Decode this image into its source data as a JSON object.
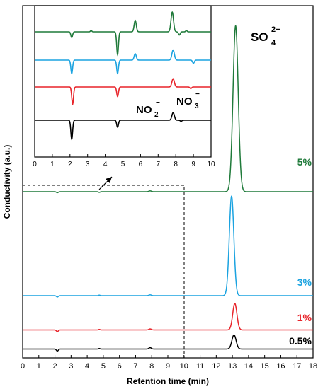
{
  "chart_data": [
    {
      "type": "line",
      "title": "",
      "xlabel": "Retention time (min)",
      "ylabel": "Conductivity (a.u.)",
      "xlim": [
        0,
        18
      ],
      "x_ticks": [
        "0",
        "1",
        "2",
        "3",
        "4",
        "5",
        "6",
        "7",
        "8",
        "9",
        "10",
        "11",
        "12",
        "13",
        "14",
        "15",
        "16",
        "17",
        "18"
      ],
      "y_ticks": "none",
      "grid": false,
      "stacked_offset_traces": true,
      "series": [
        {
          "name": "0.5%",
          "color": "#000000",
          "baseline": 0.0,
          "peaks": [
            {
              "x": 2.15,
              "h": -0.12,
              "w": 0.06
            },
            {
              "x": 4.75,
              "h": 0.03,
              "w": 0.05
            },
            {
              "x": 7.9,
              "h": 0.08,
              "w": 0.08
            },
            {
              "x": 13.1,
              "h": 0.85,
              "w": 0.13
            }
          ]
        },
        {
          "name": "1%",
          "color": "#e8242a",
          "baseline": 1.1,
          "peaks": [
            {
              "x": 2.15,
              "h": -0.1,
              "w": 0.06
            },
            {
              "x": 4.75,
              "h": 0.03,
              "w": 0.05
            },
            {
              "x": 7.9,
              "h": 0.06,
              "w": 0.08
            },
            {
              "x": 13.15,
              "h": 1.6,
              "w": 0.13
            }
          ]
        },
        {
          "name": "3%",
          "color": "#1ba3e0",
          "baseline": 2.1,
          "peaks": [
            {
              "x": 2.15,
              "h": -0.08,
              "w": 0.06
            },
            {
              "x": 4.75,
              "h": 0.03,
              "w": 0.05
            },
            {
              "x": 7.9,
              "h": 0.05,
              "w": 0.08
            },
            {
              "x": 12.95,
              "h": 6.0,
              "w": 0.14
            }
          ]
        },
        {
          "name": "5%",
          "color": "#1f7a3a",
          "baseline": 8.0,
          "peaks": [
            {
              "x": 2.15,
              "h": -0.06,
              "w": 0.06
            },
            {
              "x": 4.75,
              "h": -0.04,
              "w": 0.05
            },
            {
              "x": 7.9,
              "h": 0.05,
              "w": 0.08
            },
            {
              "x": 13.2,
              "h": 10.0,
              "w": 0.16
            }
          ]
        }
      ],
      "annotations": {
        "peak_label": "SO",
        "peak_label_sub": "4",
        "peak_label_sup": "2−"
      },
      "zoom_box": {
        "x_range": [
          0,
          10
        ],
        "note": "dashed box region enlarged in inset"
      }
    },
    {
      "type": "line",
      "title": "",
      "xlabel": "",
      "ylabel": "",
      "xlim": [
        0,
        10
      ],
      "x_ticks": [
        "0",
        "1",
        "2",
        "3",
        "4",
        "5",
        "6",
        "7",
        "8",
        "9",
        "10"
      ],
      "grid": false,
      "series": [
        {
          "name": "0.5%",
          "color": "#000000",
          "baseline": 0.0,
          "peaks": [
            {
              "x": 2.1,
              "h": -1.5,
              "w": 0.05
            },
            {
              "x": 4.7,
              "h": -0.55,
              "w": 0.05
            },
            {
              "x": 7.85,
              "h": 0.6,
              "w": 0.07
            },
            {
              "x": 8.3,
              "h": -0.08,
              "w": 0.05
            }
          ]
        },
        {
          "name": "1%",
          "color": "#e8242a",
          "baseline": 2.2,
          "peaks": [
            {
              "x": 2.15,
              "h": -1.35,
              "w": 0.05
            },
            {
              "x": 4.7,
              "h": -0.75,
              "w": 0.05
            },
            {
              "x": 7.85,
              "h": 0.65,
              "w": 0.07
            },
            {
              "x": 8.85,
              "h": -0.12,
              "w": 0.05
            }
          ]
        },
        {
          "name": "3%",
          "color": "#1ba3e0",
          "baseline": 4.2,
          "peaks": [
            {
              "x": 2.1,
              "h": -1.05,
              "w": 0.05
            },
            {
              "x": 4.7,
              "h": -1.05,
              "w": 0.05
            },
            {
              "x": 5.7,
              "h": 0.5,
              "w": 0.06
            },
            {
              "x": 7.85,
              "h": 0.8,
              "w": 0.07
            },
            {
              "x": 9.0,
              "h": -0.25,
              "w": 0.05
            }
          ]
        },
        {
          "name": "5%",
          "color": "#1f7a3a",
          "baseline": 6.2,
          "peaks": [
            {
              "x": 2.1,
              "h": -0.45,
              "w": 0.05
            },
            {
              "x": 3.2,
              "h": 0.1,
              "w": 0.04
            },
            {
              "x": 4.7,
              "h": -1.8,
              "w": 0.05
            },
            {
              "x": 5.7,
              "h": 0.9,
              "w": 0.06
            },
            {
              "x": 7.8,
              "h": 1.55,
              "w": 0.07
            },
            {
              "x": 8.2,
              "h": -0.25,
              "w": 0.05
            },
            {
              "x": 8.6,
              "h": 0.1,
              "w": 0.04
            }
          ]
        }
      ],
      "annotations": [
        {
          "label": "NO",
          "sub": "2",
          "sup": "−"
        },
        {
          "label": "NO",
          "sub": "3",
          "sup": "−"
        }
      ]
    }
  ]
}
